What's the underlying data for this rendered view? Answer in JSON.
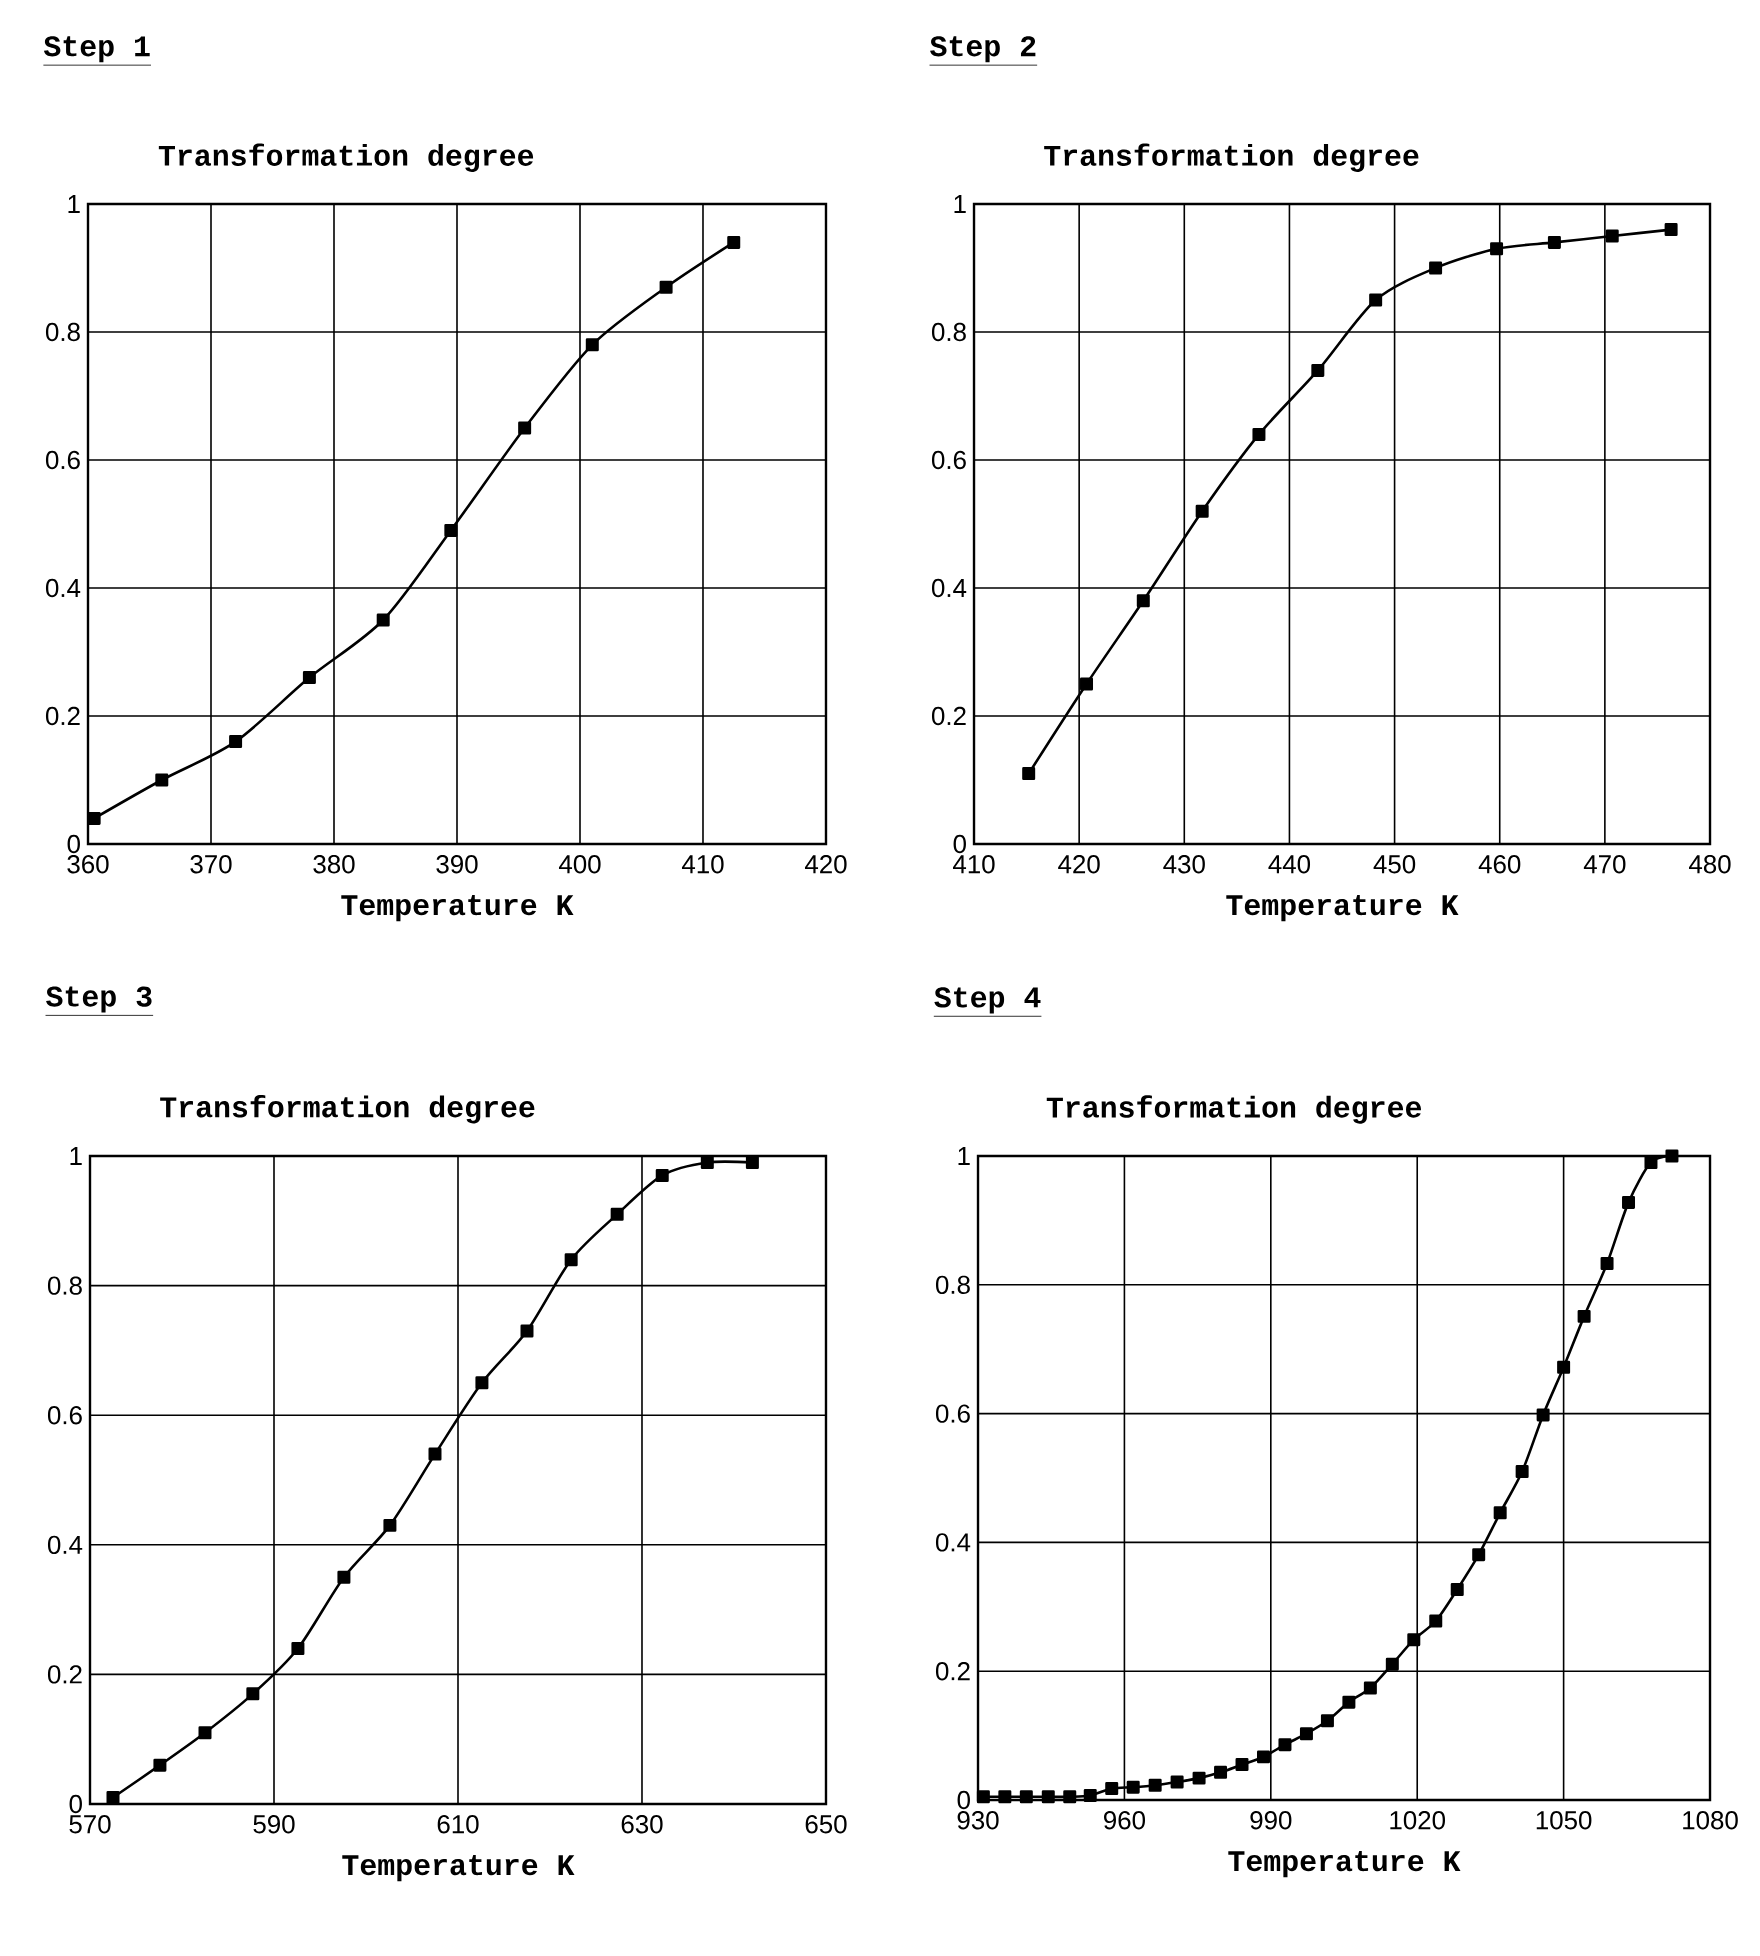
{
  "chart_data": [
    {
      "type": "line",
      "title": "Step 1",
      "subtitle": "Transformation degree",
      "xlabel": "Temperature K",
      "x": [
        360.5,
        366,
        372,
        378,
        384,
        389.5,
        395.5,
        401,
        407,
        412.5
      ],
      "series": [
        {
          "color": "#000000",
          "values": [
            0.04,
            0.1,
            0.16,
            0.26,
            0.35,
            0.49,
            0.65,
            0.78,
            0.87,
            0.94
          ]
        }
      ],
      "xlim": [
        360,
        420
      ],
      "xticks": [
        360,
        370,
        380,
        390,
        400,
        410,
        420
      ],
      "ylim": [
        0,
        1
      ],
      "yticks": [
        0,
        0.2,
        0.4,
        0.6,
        0.8,
        1
      ],
      "grid": true,
      "marker": "square",
      "line_style": "solid"
    },
    {
      "type": "line",
      "title": "Step 2",
      "subtitle": "Transformation degree",
      "xlabel": "Temperature K",
      "x": [
        415.2,
        420.7,
        426.1,
        431.7,
        437.1,
        442.7,
        448.2,
        453.9,
        459.7,
        465.2,
        470.7,
        476.3
      ],
      "series": [
        {
          "color": "#000000",
          "values": [
            0.11,
            0.25,
            0.38,
            0.52,
            0.64,
            0.74,
            0.85,
            0.9,
            0.93,
            0.94,
            0.95,
            0.96
          ]
        }
      ],
      "xlim": [
        410,
        480
      ],
      "xticks": [
        410,
        420,
        430,
        440,
        450,
        460,
        470,
        480
      ],
      "ylim": [
        0,
        1
      ],
      "yticks": [
        0,
        0.2,
        0.4,
        0.6,
        0.8,
        1
      ],
      "grid": true,
      "marker": "square",
      "line_style": "solid"
    },
    {
      "type": "line",
      "title": "Step 3",
      "subtitle": "Transformation degree",
      "xlabel": "Temperature K",
      "x": [
        572.5,
        577.6,
        582.5,
        587.7,
        592.6,
        597.6,
        602.6,
        607.5,
        612.6,
        617.5,
        622.3,
        627.3,
        632.2,
        637.1,
        642
      ],
      "series": [
        {
          "color": "#000000",
          "values": [
            0.01,
            0.06,
            0.11,
            0.17,
            0.24,
            0.35,
            0.43,
            0.54,
            0.65,
            0.73,
            0.84,
            0.91,
            0.97,
            0.99,
            0.99
          ]
        }
      ],
      "xlim": [
        570,
        650
      ],
      "xticks": [
        570,
        590,
        610,
        630,
        650
      ],
      "ylim": [
        0,
        1
      ],
      "yticks": [
        0,
        0.2,
        0.4,
        0.6,
        0.8,
        1
      ],
      "grid": true,
      "marker": "square",
      "line_style": "solid"
    },
    {
      "type": "line",
      "title": "Step 4",
      "subtitle": "Transformation degree",
      "xlabel": "Temperature K",
      "x": [
        931.1,
        935.5,
        939.9,
        944.4,
        948.8,
        953,
        957.4,
        961.8,
        966.3,
        970.8,
        975.3,
        979.7,
        984.1,
        988.5,
        992.9,
        997.3,
        1001.6,
        1006,
        1010.4,
        1014.9,
        1019.3,
        1023.8,
        1028.2,
        1032.6,
        1037,
        1041.5,
        1045.8,
        1050,
        1054.2,
        1058.9,
        1063.3,
        1067.9,
        1072.2
      ],
      "series": [
        {
          "color": "#000000",
          "values": [
            0.005,
            0.005,
            0.005,
            0.005,
            0.005,
            0.007,
            0.018,
            0.02,
            0.023,
            0.028,
            0.034,
            0.043,
            0.055,
            0.067,
            0.086,
            0.103,
            0.123,
            0.152,
            0.174,
            0.211,
            0.249,
            0.278,
            0.327,
            0.381,
            0.446,
            0.51,
            0.598,
            0.672,
            0.751,
            0.833,
            0.928,
            0.99,
            1.0
          ]
        }
      ],
      "xlim": [
        930,
        1080
      ],
      "xticks": [
        930,
        960,
        990,
        1020,
        1050,
        1080
      ],
      "ylim": [
        0,
        1
      ],
      "yticks": [
        0,
        0.2,
        0.4,
        0.6,
        0.8,
        1
      ],
      "grid": true,
      "marker": "square",
      "line_style": "solid"
    }
  ]
}
